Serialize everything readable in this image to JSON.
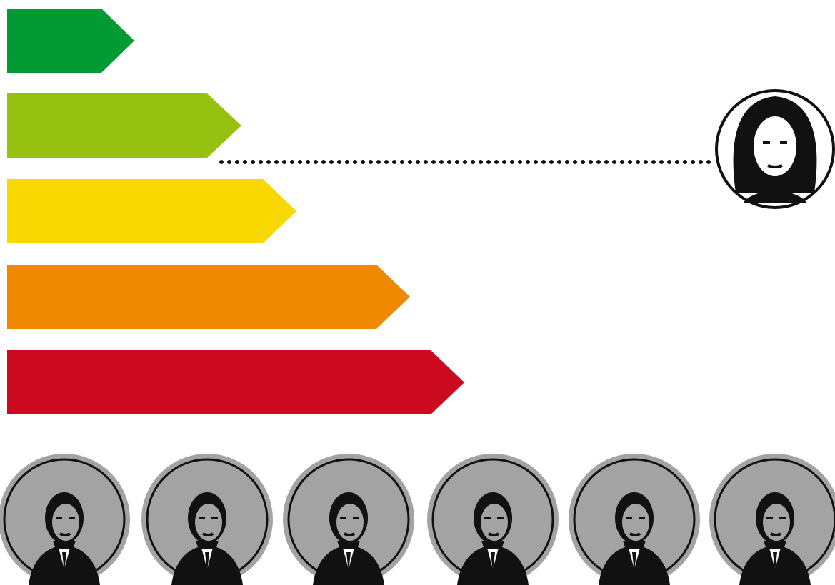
{
  "bars": [
    {
      "color": "#029a33"
    },
    {
      "color": "#97c111"
    },
    {
      "color": "#f9d700"
    },
    {
      "color": "#ef8902"
    },
    {
      "color": "#cb0a20"
    }
  ]
}
